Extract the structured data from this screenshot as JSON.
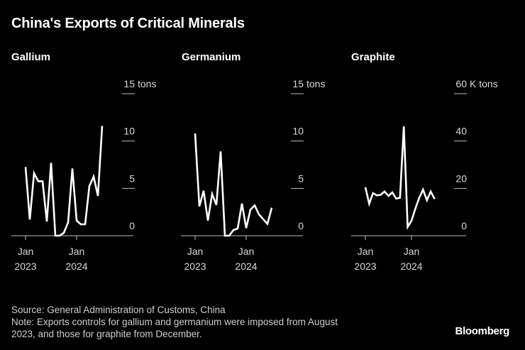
{
  "title": "China's Exports of Critical Minerals",
  "footer": {
    "source": "Source: General Administration of Customs, China",
    "note_line1": "Note: Exports controls for gallium and germanium were imposed from August",
    "note_line2": "2023, and those for graphite from December.",
    "brand": "Bloomberg"
  },
  "colors": {
    "background": "#000000",
    "line": "#ffffff",
    "text": "#d8d8d8"
  },
  "chart_data": [
    {
      "type": "line",
      "title": "Gallium",
      "unit": "tons",
      "x_start": "2023-01",
      "x_frequency": "monthly",
      "x_ticks": [
        {
          "month": "2023-01",
          "label1": "Jan",
          "label2": "2023"
        },
        {
          "month": "2024-01",
          "label1": "Jan",
          "label2": "2024"
        }
      ],
      "y_ticks": [
        0,
        5,
        10,
        15
      ],
      "ylim": [
        0,
        15
      ],
      "values": [
        7.25,
        1.7,
        6.6,
        5.75,
        5.75,
        1.5,
        7.7,
        0,
        0,
        0.3,
        1.4,
        7.1,
        1.6,
        1.2,
        1.2,
        5.25,
        6.25,
        4.2,
        11.6
      ]
    },
    {
      "type": "line",
      "title": "Germanium",
      "unit": "tons",
      "x_start": "2023-01",
      "x_frequency": "monthly",
      "x_ticks": [
        {
          "month": "2023-01",
          "label1": "Jan",
          "label2": "2023"
        },
        {
          "month": "2024-01",
          "label1": "Jan",
          "label2": "2024"
        }
      ],
      "y_ticks": [
        0,
        5,
        10,
        15
      ],
      "ylim": [
        0,
        15
      ],
      "values": [
        10.8,
        3.1,
        4.75,
        1.6,
        4.4,
        3.25,
        8.9,
        0,
        0,
        0.6,
        0.75,
        3.4,
        0.8,
        2.75,
        3.2,
        2.25,
        1.75,
        1.25,
        2.95
      ]
    },
    {
      "type": "line",
      "title": "Graphite",
      "unit": "K tons",
      "x_start": "2023-01",
      "x_frequency": "monthly",
      "x_ticks": [
        {
          "month": "2023-01",
          "label1": "Jan",
          "label2": "2023"
        },
        {
          "month": "2024-01",
          "label1": "Jan",
          "label2": "2024"
        }
      ],
      "y_ticks": [
        0,
        20,
        40,
        60
      ],
      "ylim": [
        0,
        60
      ],
      "values": [
        20.5,
        13.5,
        18,
        17,
        17.3,
        18.7,
        16.8,
        18.3,
        15.7,
        16,
        46.2,
        3.7,
        6.3,
        11.5,
        16,
        19.5,
        15,
        18.7,
        15.5
      ]
    }
  ]
}
